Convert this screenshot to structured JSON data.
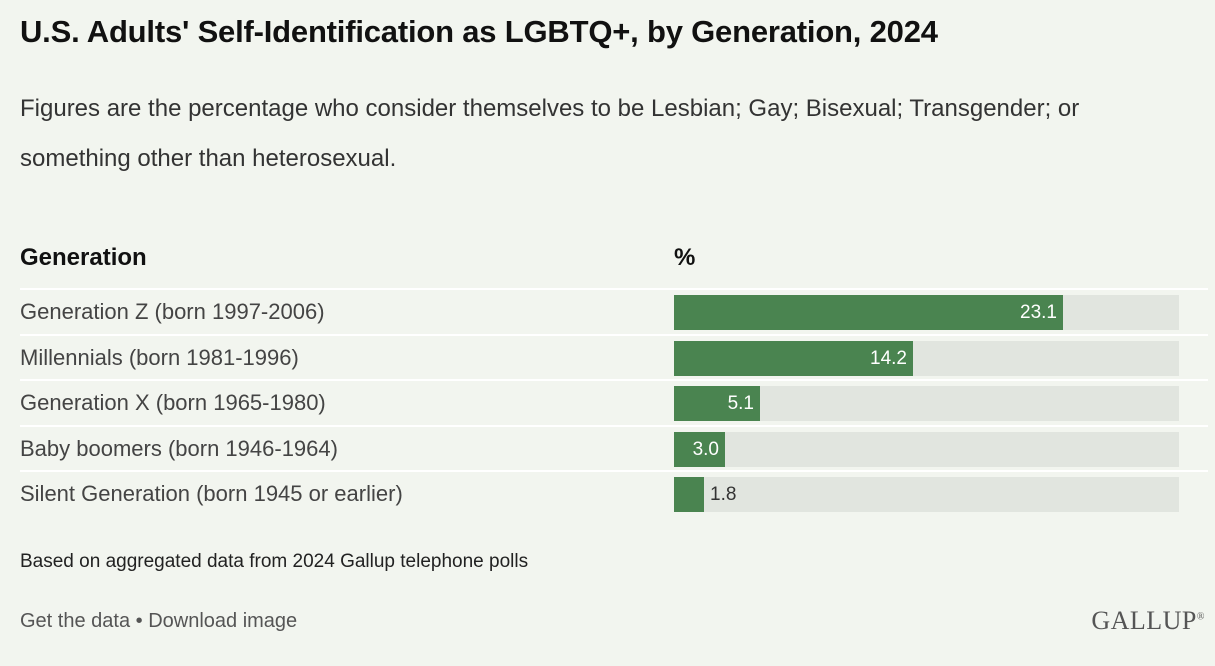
{
  "title": "U.S. Adults' Self-Identification as LGBTQ+, by Generation, 2024",
  "subtitle": "Figures are the percentage who consider themselves to be Lesbian; Gay; Bisexual; Transgender; or something other than heterosexual.",
  "columns": {
    "generation": "Generation",
    "percent": "%"
  },
  "note": "Based on aggregated data from 2024 Gallup telephone polls",
  "footer": {
    "get_data": "Get the data",
    "separator": " • ",
    "download": "Download image"
  },
  "logo": "GALLUP",
  "colors": {
    "bar": "#4a8450",
    "track": "#e1e5df",
    "background": "#f2f5ef"
  },
  "chart_data": {
    "type": "bar",
    "orientation": "horizontal",
    "categories": [
      "Generation Z (born 1997-2006)",
      "Millennials (born 1981-1996)",
      "Generation X (born 1965-1980)",
      "Baby boomers (born 1946-1964)",
      "Silent Generation (born 1945 or earlier)"
    ],
    "values": [
      23.1,
      14.2,
      5.1,
      3.0,
      1.8
    ],
    "value_labels": [
      "23.1",
      "14.2",
      "5.1",
      "3.0",
      "1.8"
    ],
    "xlim": [
      0,
      30
    ],
    "grid": false
  }
}
